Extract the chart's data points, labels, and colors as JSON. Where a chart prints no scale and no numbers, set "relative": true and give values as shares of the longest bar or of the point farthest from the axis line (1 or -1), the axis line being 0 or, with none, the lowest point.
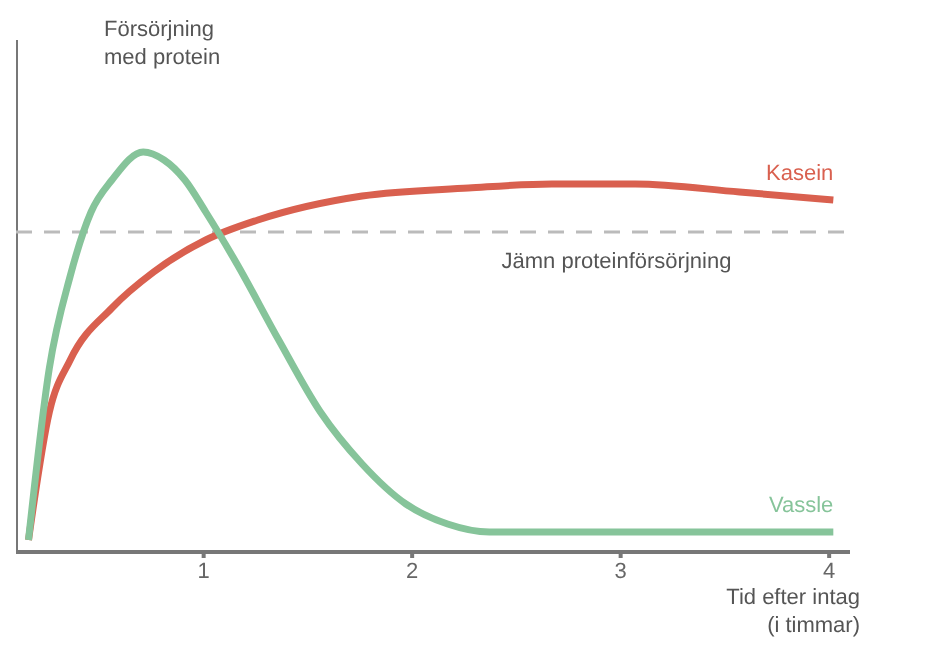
{
  "chart_data": {
    "type": "line",
    "relative": true,
    "ylabel": "Försörjning\nmed protein",
    "xlabel": "Tid efter intag\n(i timmar)",
    "xlim": [
      0.1,
      4.1
    ],
    "xticks": [
      1,
      2,
      3,
      4
    ],
    "series": [
      {
        "name": "Kasein",
        "color": "#d9604f",
        "x": [
          0.16,
          0.26,
          0.36,
          0.56,
          0.76,
          1.01,
          1.26,
          1.76,
          2.27,
          2.67,
          3.07,
          3.57,
          4.02
        ],
        "values": [
          0.03,
          0.35,
          0.48,
          0.61,
          0.7,
          0.78,
          0.83,
          0.89,
          0.91,
          0.92,
          0.92,
          0.9,
          0.88
        ]
      },
      {
        "name": "Vassle",
        "color": "#86c49a",
        "x": [
          0.16,
          0.26,
          0.36,
          0.46,
          0.56,
          0.71,
          0.81,
          0.91,
          1.01,
          1.16,
          1.36,
          1.56,
          1.76,
          1.97,
          2.17,
          2.37,
          4.02
        ],
        "values": [
          0.03,
          0.46,
          0.69,
          0.85,
          0.93,
          1,
          0.98,
          0.93,
          0.85,
          0.72,
          0.53,
          0.35,
          0.22,
          0.12,
          0.07,
          0.05,
          0.05
        ]
      }
    ],
    "ref_lines": [
      {
        "axis": "y",
        "value": 0.8,
        "label": "Jämn proteinförsörjning",
        "color": "#bbbbbb",
        "line_style": "dashed"
      }
    ]
  }
}
